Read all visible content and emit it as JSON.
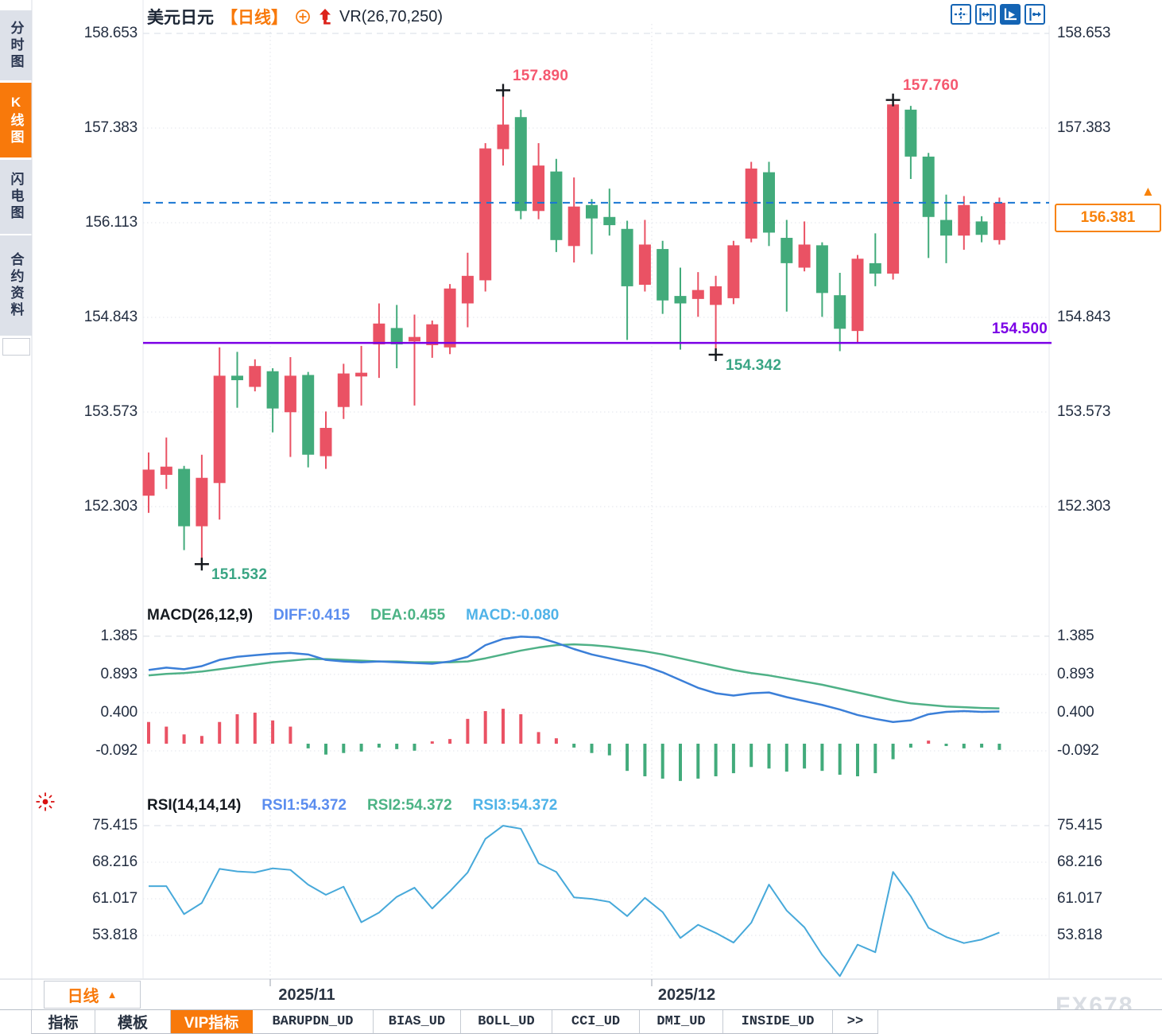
{
  "header": {
    "symbol": "美元日元",
    "period_tag": "【日线】",
    "indicator": "VR(26,70,250)"
  },
  "sidebar": {
    "items": [
      {
        "label": "分时图",
        "active": false
      },
      {
        "label": "K线图",
        "active": true
      },
      {
        "label": "闪电图",
        "active": false
      },
      {
        "label": "合约资料",
        "active": false
      }
    ]
  },
  "toolbar": {
    "icons": [
      "crosshair-move",
      "axis-range",
      "auto-fit",
      "pan-right"
    ]
  },
  "colors": {
    "up": "#ea5264",
    "down": "#42ab7b",
    "accent_orange": "#f8790b",
    "blue_dashed_line": "#1876d2",
    "purple_line": "#7b00e6",
    "diff_line": "#3b7fd8",
    "dea_line": "#4fb187",
    "rsi_line": "#47a9da",
    "pink_label": "#f5586f",
    "green_label": "#3aa584",
    "axis_text": "#242f42"
  },
  "main_panel": {
    "y_labels": [
      "158.653",
      "157.383",
      "156.113",
      "154.843",
      "153.573",
      "152.303"
    ],
    "annotations": {
      "high1": "157.890",
      "high2": "157.760",
      "low1": "151.532",
      "low2": "154.342",
      "support": "154.500",
      "current": "156.381"
    }
  },
  "macd_panel": {
    "title": "MACD(26,12,9)",
    "diff_label": "DIFF:0.415",
    "dea_label": "DEA:0.455",
    "macd_label": "MACD:-0.080",
    "y_labels": [
      "1.385",
      "0.893",
      "0.400",
      "-0.092"
    ]
  },
  "rsi_panel": {
    "title": "RSI(14,14,14)",
    "rsi1_label": "RSI1:54.372",
    "rsi2_label": "RSI2:54.372",
    "rsi3_label": "RSI3:54.372",
    "y_labels": [
      "75.415",
      "68.216",
      "61.017",
      "53.818"
    ]
  },
  "xaxis": {
    "labels": [
      "2025/11",
      "2025/12"
    ]
  },
  "footer": {
    "period_label": "日线",
    "tabs": [
      {
        "label": "指标",
        "active": false,
        "mono": false
      },
      {
        "label": "模板",
        "active": false,
        "mono": false
      },
      {
        "label": "VIP指标",
        "active": true,
        "mono": false
      },
      {
        "label": "BARUPDN_UD",
        "active": false,
        "mono": true
      },
      {
        "label": "BIAS_UD",
        "active": false,
        "mono": true
      },
      {
        "label": "BOLL_UD",
        "active": false,
        "mono": true
      },
      {
        "label": "CCI_UD",
        "active": false,
        "mono": true
      },
      {
        "label": "DMI_UD",
        "active": false,
        "mono": true
      },
      {
        "label": "INSIDE_UD",
        "active": false,
        "mono": true
      },
      {
        "label": ">>",
        "active": false,
        "mono": true
      }
    ],
    "watermark": "FX678"
  },
  "chart_data": [
    {
      "type": "candlestick",
      "title": "USDJPY daily (美元日元 日线)",
      "ylim": [
        151.2,
        158.653
      ],
      "y_ticks": [
        158.653,
        157.383,
        156.113,
        154.843,
        153.573,
        152.303
      ],
      "current_price": 156.381,
      "support_line": 154.5,
      "candles": [
        [
          152.45,
          153.03,
          152.22,
          152.8
        ],
        [
          152.73,
          153.23,
          152.54,
          152.84
        ],
        [
          152.81,
          152.85,
          151.72,
          152.04
        ],
        [
          152.04,
          153.0,
          151.532,
          152.69
        ],
        [
          152.62,
          154.44,
          152.13,
          154.06
        ],
        [
          154.06,
          154.38,
          153.63,
          154.0
        ],
        [
          153.91,
          154.28,
          153.85,
          154.19
        ],
        [
          154.12,
          154.16,
          153.3,
          153.62
        ],
        [
          153.57,
          154.31,
          152.97,
          154.06
        ],
        [
          154.07,
          154.11,
          152.83,
          153.0
        ],
        [
          152.98,
          153.58,
          152.81,
          153.36
        ],
        [
          153.64,
          154.22,
          153.48,
          154.09
        ],
        [
          154.05,
          154.46,
          153.66,
          154.1
        ],
        [
          154.48,
          155.03,
          154.03,
          154.76
        ],
        [
          154.7,
          155.01,
          154.16,
          154.48
        ],
        [
          154.52,
          154.88,
          153.66,
          154.58
        ],
        [
          154.47,
          154.8,
          154.3,
          154.75
        ],
        [
          154.44,
          155.29,
          154.35,
          155.23
        ],
        [
          155.03,
          155.71,
          154.71,
          155.4
        ],
        [
          155.34,
          157.18,
          155.19,
          157.11
        ],
        [
          157.1,
          157.89,
          156.88,
          157.43
        ],
        [
          157.53,
          157.63,
          156.16,
          156.27
        ],
        [
          156.27,
          157.18,
          156.16,
          156.88
        ],
        [
          156.8,
          156.97,
          155.72,
          155.88
        ],
        [
          155.8,
          156.72,
          155.58,
          156.33
        ],
        [
          156.35,
          156.43,
          155.69,
          156.17
        ],
        [
          156.19,
          156.57,
          155.94,
          156.08
        ],
        [
          156.03,
          156.14,
          154.54,
          155.26
        ],
        [
          155.28,
          156.15,
          155.19,
          155.82
        ],
        [
          155.76,
          155.87,
          154.89,
          155.07
        ],
        [
          155.13,
          155.51,
          154.41,
          155.03
        ],
        [
          155.09,
          155.45,
          154.85,
          155.21
        ],
        [
          155.01,
          155.4,
          154.342,
          155.26
        ],
        [
          155.1,
          155.87,
          155.02,
          155.81
        ],
        [
          155.9,
          156.93,
          155.85,
          156.84
        ],
        [
          156.79,
          156.93,
          155.8,
          155.98
        ],
        [
          155.91,
          156.15,
          154.92,
          155.57
        ],
        [
          155.51,
          156.13,
          155.46,
          155.82
        ],
        [
          155.81,
          155.85,
          154.85,
          155.17
        ],
        [
          155.14,
          155.44,
          154.39,
          154.69
        ],
        [
          154.66,
          155.68,
          154.5,
          155.63
        ],
        [
          155.57,
          155.97,
          155.26,
          155.43
        ],
        [
          155.43,
          157.76,
          155.35,
          157.7
        ],
        [
          157.63,
          157.68,
          156.7,
          157.0
        ],
        [
          157.0,
          157.05,
          155.64,
          156.19
        ],
        [
          156.15,
          156.49,
          155.57,
          155.94
        ],
        [
          155.94,
          156.47,
          155.75,
          156.35
        ],
        [
          156.13,
          156.2,
          155.85,
          155.95
        ],
        [
          155.88,
          156.45,
          155.82,
          156.381
        ]
      ],
      "markers": [
        {
          "index": 20,
          "price": 157.89,
          "kind": "high"
        },
        {
          "index": 42,
          "price": 157.76,
          "kind": "high"
        },
        {
          "index": 3,
          "price": 151.532,
          "kind": "low"
        },
        {
          "index": 32,
          "price": 154.342,
          "kind": "low"
        }
      ]
    },
    {
      "type": "macd",
      "y_ticks": [
        1.385,
        0.893,
        0.4,
        -0.092
      ],
      "diff": [
        0.95,
        0.98,
        0.96,
        1.0,
        1.08,
        1.12,
        1.14,
        1.16,
        1.17,
        1.15,
        1.08,
        1.06,
        1.05,
        1.06,
        1.05,
        1.04,
        1.03,
        1.06,
        1.12,
        1.27,
        1.35,
        1.38,
        1.37,
        1.3,
        1.22,
        1.15,
        1.1,
        1.05,
        1.0,
        0.92,
        0.82,
        0.72,
        0.65,
        0.62,
        0.65,
        0.66,
        0.6,
        0.55,
        0.5,
        0.44,
        0.37,
        0.32,
        0.28,
        0.3,
        0.38,
        0.41,
        0.42,
        0.41,
        0.415
      ],
      "dea": [
        0.88,
        0.9,
        0.91,
        0.93,
        0.96,
        0.99,
        1.02,
        1.05,
        1.07,
        1.09,
        1.09,
        1.08,
        1.07,
        1.06,
        1.06,
        1.05,
        1.05,
        1.05,
        1.06,
        1.1,
        1.15,
        1.2,
        1.24,
        1.27,
        1.28,
        1.27,
        1.25,
        1.22,
        1.19,
        1.15,
        1.1,
        1.05,
        1.0,
        0.95,
        0.91,
        0.88,
        0.84,
        0.8,
        0.76,
        0.71,
        0.66,
        0.61,
        0.56,
        0.52,
        0.5,
        0.48,
        0.47,
        0.46,
        0.455
      ],
      "hist": [
        0.28,
        0.22,
        0.12,
        0.1,
        0.28,
        0.38,
        0.4,
        0.3,
        0.22,
        -0.06,
        -0.14,
        -0.12,
        -0.1,
        -0.05,
        -0.07,
        -0.09,
        0.03,
        0.06,
        0.32,
        0.42,
        0.45,
        0.38,
        0.15,
        0.07,
        -0.05,
        -0.12,
        -0.15,
        -0.35,
        -0.42,
        -0.45,
        -0.48,
        -0.45,
        -0.42,
        -0.38,
        -0.3,
        -0.32,
        -0.36,
        -0.32,
        -0.35,
        -0.4,
        -0.42,
        -0.38,
        -0.2,
        -0.05,
        0.04,
        -0.03,
        -0.06,
        -0.05,
        -0.08
      ]
    },
    {
      "type": "line",
      "name": "RSI",
      "y_ticks": [
        75.415,
        68.216,
        61.017,
        53.818
      ],
      "values": [
        63.5,
        63.5,
        58.0,
        60.2,
        66.9,
        66.4,
        66.2,
        67.0,
        66.7,
        63.8,
        61.8,
        63.4,
        56.4,
        58.3,
        61.4,
        63.2,
        59.1,
        62.5,
        66.2,
        72.8,
        75.4,
        74.8,
        68.0,
        66.3,
        61.3,
        61.0,
        60.4,
        57.6,
        61.2,
        58.4,
        53.3,
        55.9,
        54.3,
        52.4,
        56.3,
        63.8,
        58.7,
        55.4,
        50.0,
        45.8,
        52.0,
        50.5,
        66.3,
        61.5,
        55.3,
        53.5,
        52.3,
        53.0,
        54.37
      ]
    }
  ]
}
